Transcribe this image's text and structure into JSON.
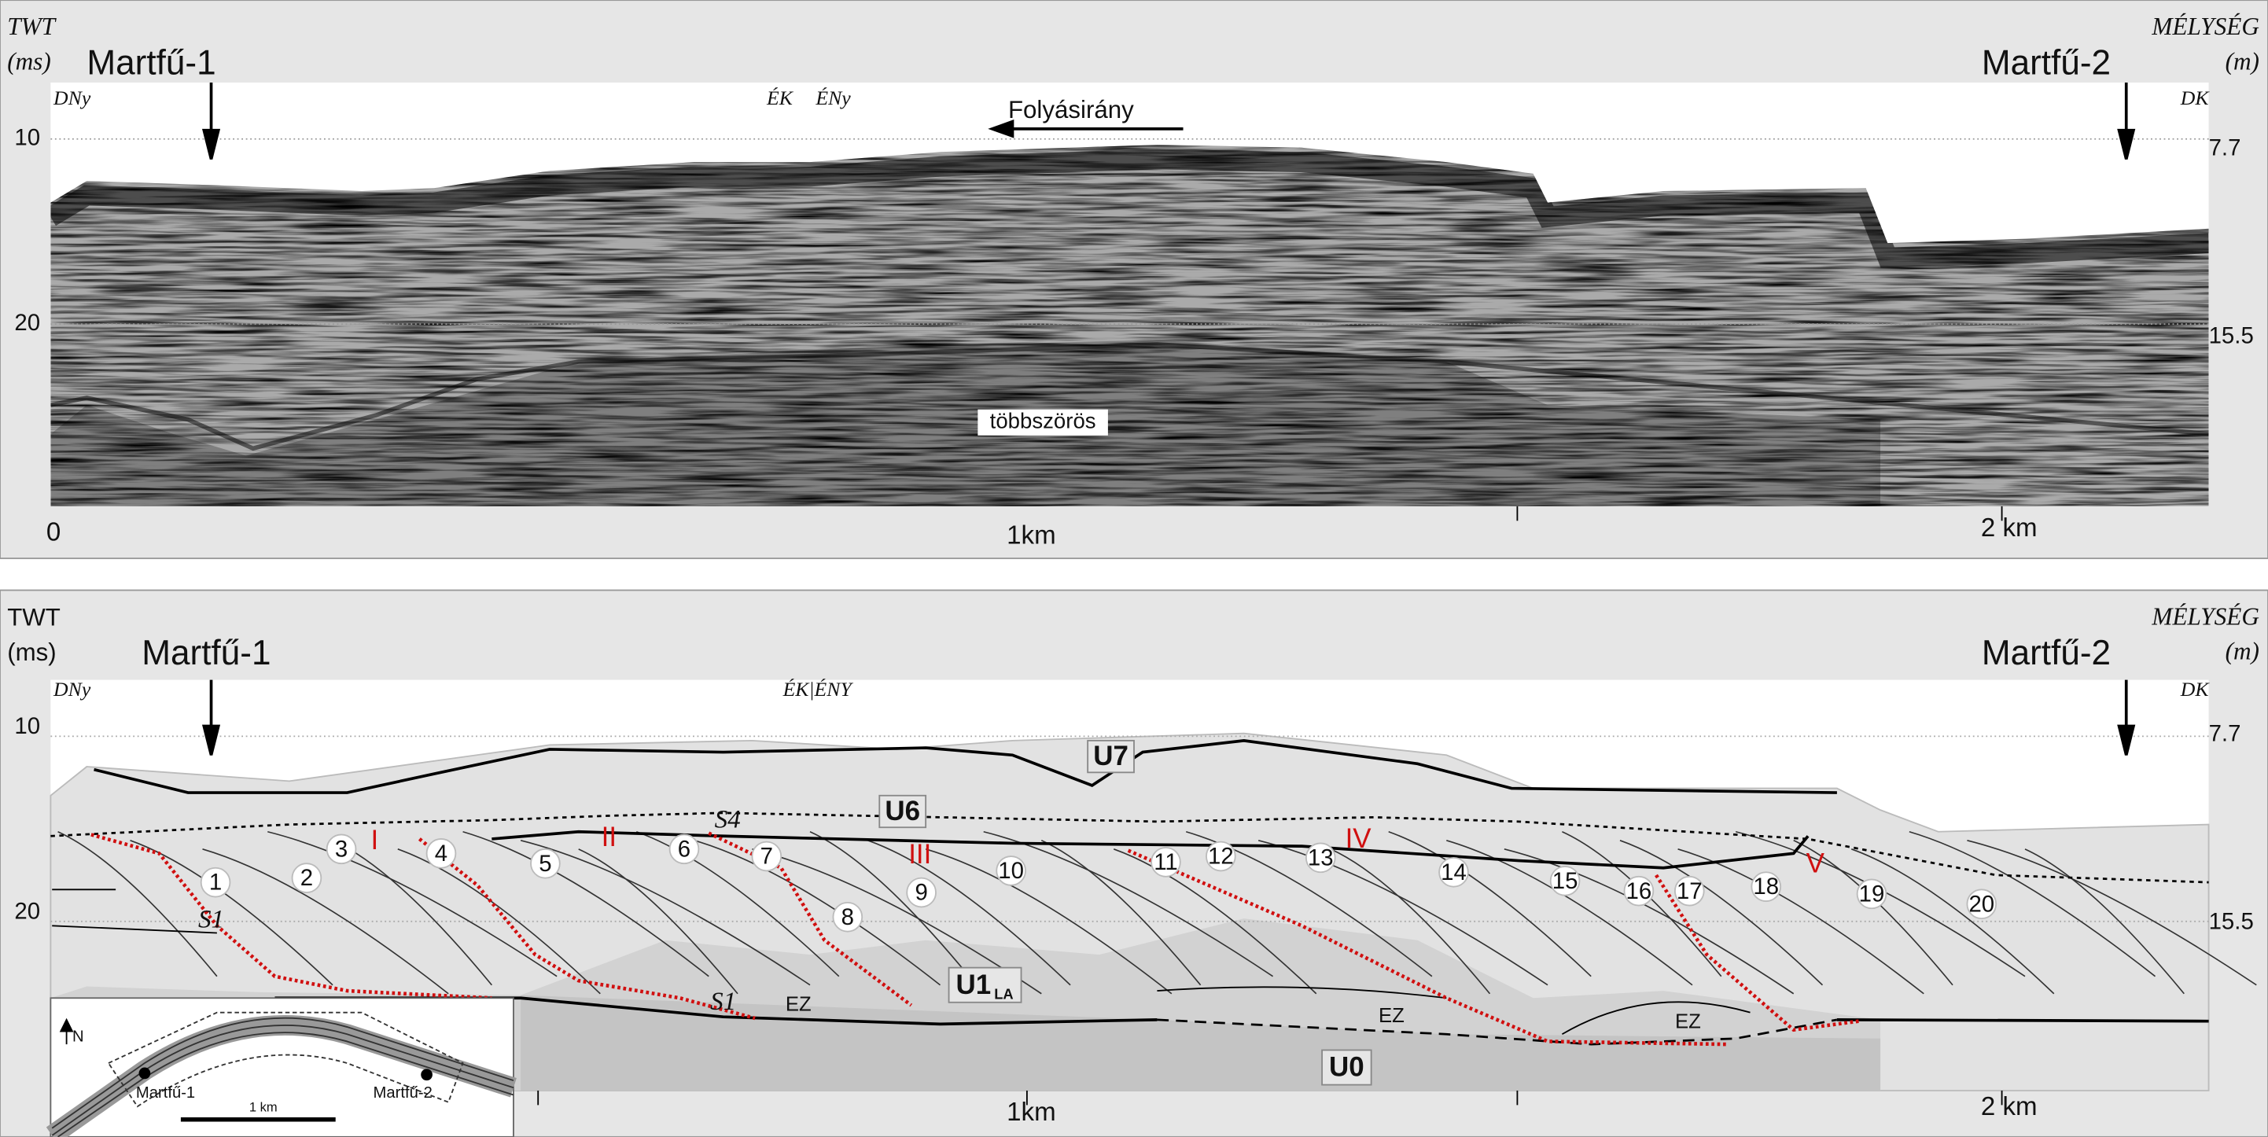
{
  "panels": [
    {
      "twt_label": "TWT",
      "twt_unit": "(ms)",
      "well_left": "Martfű-1",
      "well_right": "Martfű-2",
      "depth_label": "MÉLYSÉG",
      "depth_unit": "(m)",
      "directions": [
        "DNy",
        "ÉK",
        "ÉNy",
        "DK"
      ],
      "left_ticks": [
        "10",
        "20"
      ],
      "right_ticks": [
        "7.7",
        "15.5"
      ],
      "distance_ticks": [
        "0",
        "1km",
        "2 km"
      ],
      "flow_label": "Folyásirány",
      "multiple_label": "többszörös"
    },
    {
      "twt_label": "TWT",
      "twt_unit": "(ms)",
      "well_left": "Martfű-1",
      "well_right": "Martfű-2",
      "depth_label": "MÉLYSÉG",
      "depth_unit": "(m)",
      "directions": [
        "DNy",
        "ÉK|ÉNY",
        "DK"
      ],
      "left_ticks": [
        "10",
        "20"
      ],
      "right_ticks": [
        "7.7",
        "15.5"
      ],
      "distance_ticks": [
        "1km",
        "2 km"
      ],
      "units": [
        "U7",
        "U6",
        "S4",
        "S1",
        "S1",
        "EZ",
        "EZ",
        "EZ",
        "U0",
        "U1",
        "LA"
      ],
      "clinoforms": [
        "1",
        "2",
        "3",
        "4",
        "5",
        "6",
        "7",
        "8",
        "9",
        "10",
        "11",
        "12",
        "13",
        "14",
        "15",
        "16",
        "17",
        "18",
        "19",
        "20"
      ],
      "sequences": [
        "I",
        "II",
        "III",
        "IV",
        "V"
      ],
      "map": {
        "north": "N",
        "well_left": "Martfű-1",
        "well_right": "Martfű-2",
        "scale": "1 km"
      }
    }
  ]
}
